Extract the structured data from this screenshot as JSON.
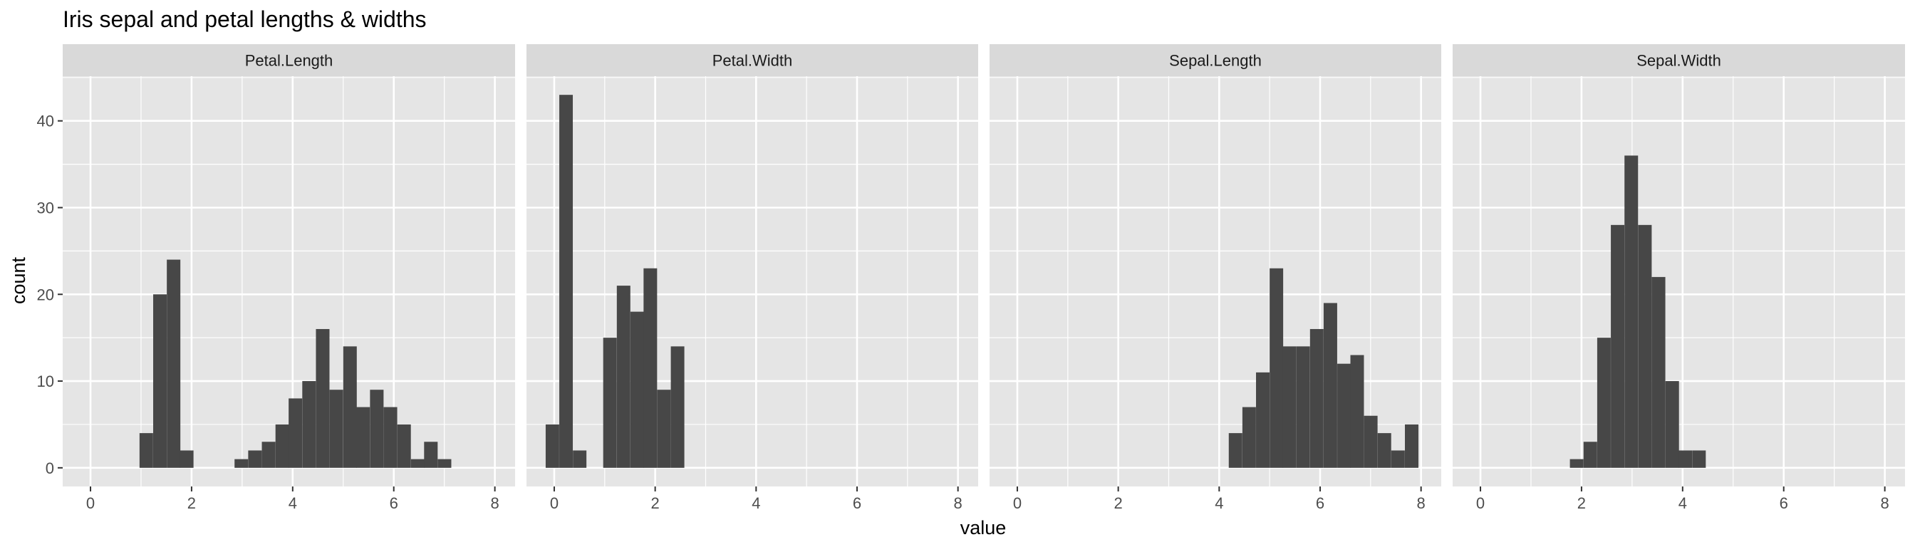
{
  "chart_data": {
    "type": "bar",
    "title": "Iris sepal and petal lengths & widths",
    "xlabel": "value",
    "ylabel": "count",
    "xlim": [
      -0.55,
      8.4
    ],
    "ylim": [
      -2.15,
      45.15
    ],
    "x_ticks": [
      0,
      2,
      4,
      6,
      8
    ],
    "y_ticks": [
      0,
      10,
      20,
      30,
      40
    ],
    "bin_width": 0.268,
    "grid": true,
    "legend": "none",
    "colors": {
      "bar": "#474747",
      "panel_bg": "#e5e5e5",
      "strip_bg": "#d9d9d9",
      "grid": "#ffffff",
      "text": "#1a1a1a",
      "tick_text": "#4d4d4d"
    },
    "facets": [
      {
        "name": "Petal.Length",
        "bins": [
          {
            "start": 0.97,
            "count": 4
          },
          {
            "start": 1.24,
            "count": 20
          },
          {
            "start": 1.51,
            "count": 24
          },
          {
            "start": 1.77,
            "count": 2
          },
          {
            "start": 2.85,
            "count": 1
          },
          {
            "start": 3.12,
            "count": 2
          },
          {
            "start": 3.39,
            "count": 3
          },
          {
            "start": 3.66,
            "count": 5
          },
          {
            "start": 3.92,
            "count": 8
          },
          {
            "start": 4.19,
            "count": 10
          },
          {
            "start": 4.46,
            "count": 16
          },
          {
            "start": 4.73,
            "count": 9
          },
          {
            "start": 5.0,
            "count": 14
          },
          {
            "start": 5.26,
            "count": 7
          },
          {
            "start": 5.53,
            "count": 9
          },
          {
            "start": 5.8,
            "count": 7
          },
          {
            "start": 6.07,
            "count": 5
          },
          {
            "start": 6.34,
            "count": 1
          },
          {
            "start": 6.6,
            "count": 3
          },
          {
            "start": 6.87,
            "count": 1
          }
        ]
      },
      {
        "name": "Petal.Width",
        "bins": [
          {
            "start": -0.17,
            "count": 5
          },
          {
            "start": 0.1,
            "count": 43
          },
          {
            "start": 0.37,
            "count": 2
          },
          {
            "start": 0.97,
            "count": 15
          },
          {
            "start": 1.24,
            "count": 21
          },
          {
            "start": 1.51,
            "count": 18
          },
          {
            "start": 1.77,
            "count": 23
          },
          {
            "start": 2.04,
            "count": 9
          },
          {
            "start": 2.31,
            "count": 14
          }
        ]
      },
      {
        "name": "Sepal.Length",
        "bins": [
          {
            "start": 4.19,
            "count": 4
          },
          {
            "start": 4.46,
            "count": 7
          },
          {
            "start": 4.73,
            "count": 11
          },
          {
            "start": 5.0,
            "count": 23
          },
          {
            "start": 5.26,
            "count": 14
          },
          {
            "start": 5.53,
            "count": 14
          },
          {
            "start": 5.8,
            "count": 16
          },
          {
            "start": 6.07,
            "count": 19
          },
          {
            "start": 6.34,
            "count": 12
          },
          {
            "start": 6.6,
            "count": 13
          },
          {
            "start": 6.87,
            "count": 6
          },
          {
            "start": 7.14,
            "count": 4
          },
          {
            "start": 7.41,
            "count": 2
          },
          {
            "start": 7.68,
            "count": 5
          }
        ]
      },
      {
        "name": "Sepal.Width",
        "bins": [
          {
            "start": 1.77,
            "count": 1
          },
          {
            "start": 2.04,
            "count": 3
          },
          {
            "start": 2.31,
            "count": 15
          },
          {
            "start": 2.58,
            "count": 28
          },
          {
            "start": 2.85,
            "count": 36
          },
          {
            "start": 3.12,
            "count": 28
          },
          {
            "start": 3.39,
            "count": 22
          },
          {
            "start": 3.66,
            "count": 10
          },
          {
            "start": 3.92,
            "count": 2
          },
          {
            "start": 4.19,
            "count": 2
          }
        ]
      }
    ]
  }
}
